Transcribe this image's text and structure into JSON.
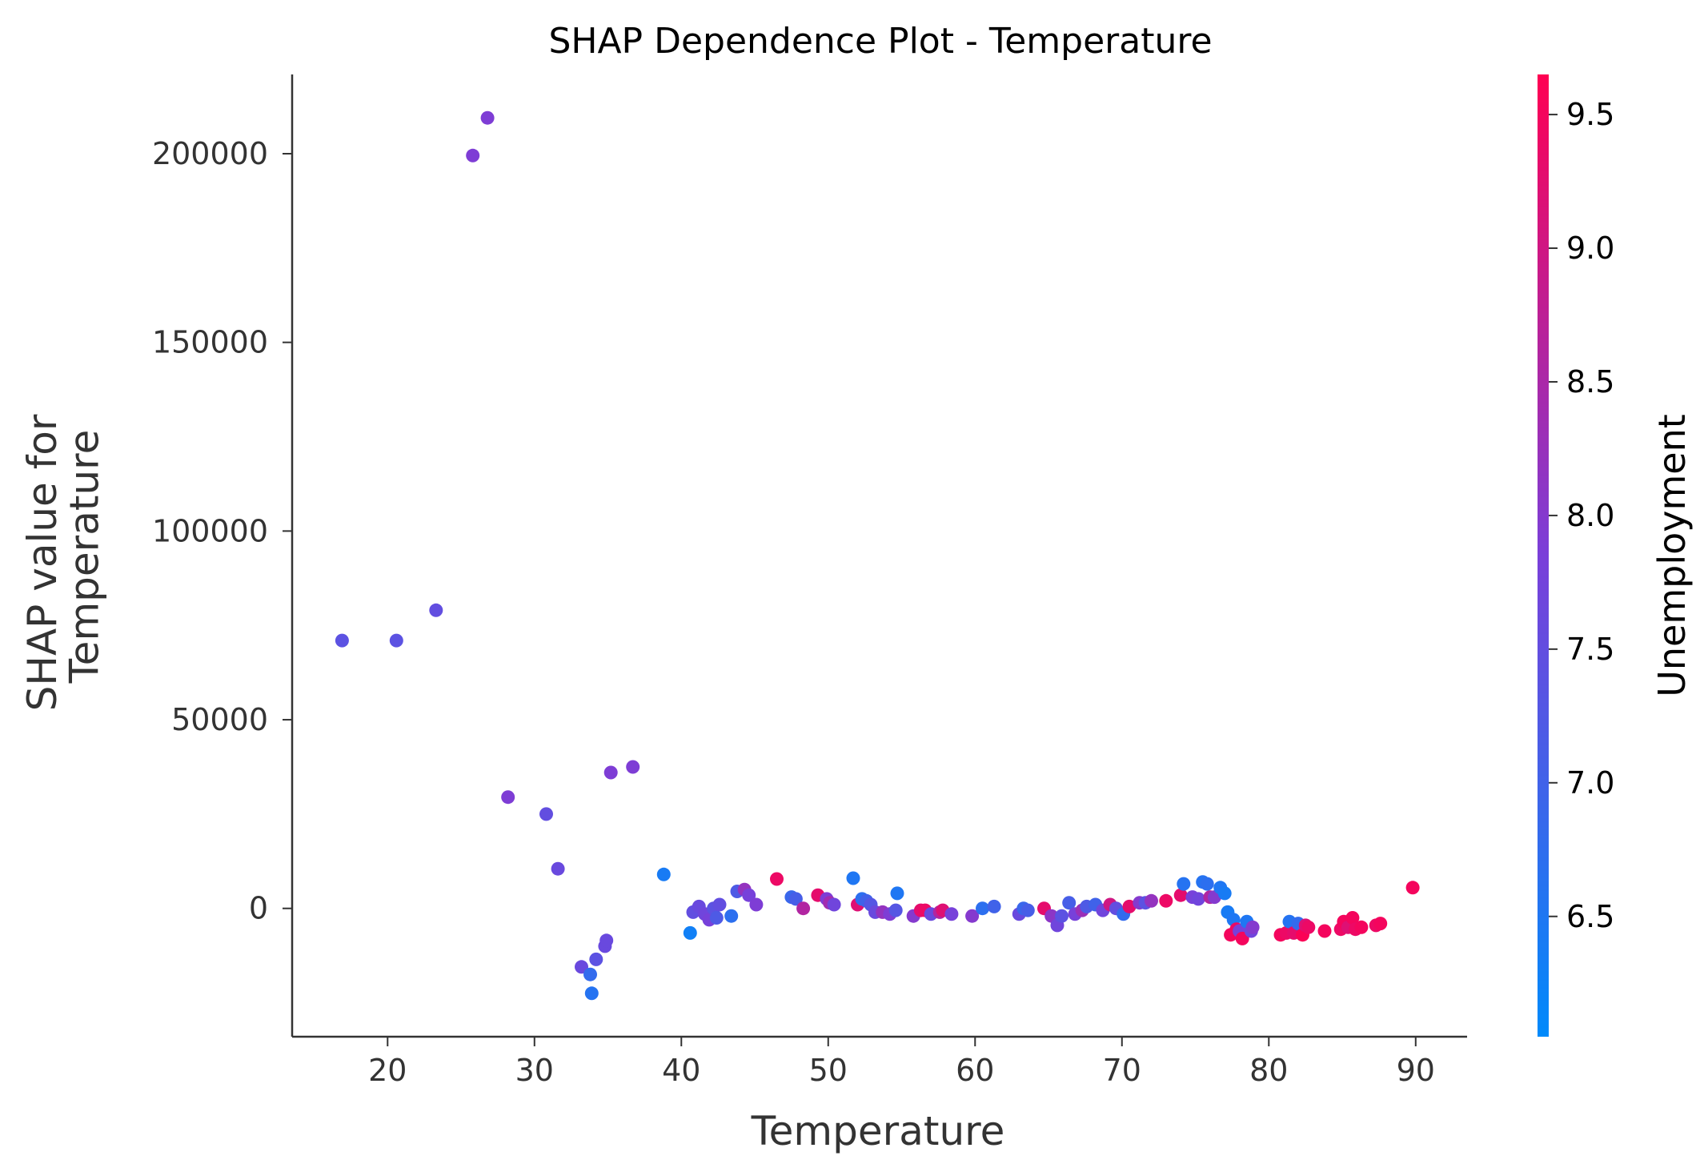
{
  "chart_data": {
    "type": "scatter",
    "title": "SHAP Dependence Plot - Temperature",
    "xlabel": "Temperature",
    "ylabel": "SHAP value for\nTemperature",
    "xlim": [
      13.5,
      93.5
    ],
    "ylim": [
      -34000,
      221000
    ],
    "xticks": [
      20,
      30,
      40,
      50,
      60,
      70,
      80,
      90
    ],
    "yticks": [
      0,
      50000,
      100000,
      150000,
      200000
    ],
    "grid": false,
    "colorbar": {
      "label": "Unemployment",
      "range": [
        6.05,
        9.65
      ],
      "ticks": [
        6.5,
        7.0,
        7.5,
        8.0,
        8.5,
        9.0,
        9.5
      ],
      "colors": [
        "#008afb",
        "#7a3fd9",
        "#ff0052"
      ]
    },
    "points": [
      {
        "x": 16.9,
        "y": 71000,
        "c": 7.4
      },
      {
        "x": 20.6,
        "y": 71000,
        "c": 7.4
      },
      {
        "x": 23.3,
        "y": 79000,
        "c": 7.5
      },
      {
        "x": 25.8,
        "y": 199500,
        "c": 7.9
      },
      {
        "x": 26.8,
        "y": 209500,
        "c": 7.9
      },
      {
        "x": 28.2,
        "y": 29500,
        "c": 7.9
      },
      {
        "x": 30.8,
        "y": 25000,
        "c": 7.5
      },
      {
        "x": 31.6,
        "y": 10500,
        "c": 7.6
      },
      {
        "x": 33.2,
        "y": -15500,
        "c": 7.6
      },
      {
        "x": 33.8,
        "y": -17500,
        "c": 6.8
      },
      {
        "x": 33.9,
        "y": -22500,
        "c": 6.6
      },
      {
        "x": 34.2,
        "y": -13500,
        "c": 7.4
      },
      {
        "x": 34.8,
        "y": -10000,
        "c": 7.6
      },
      {
        "x": 34.9,
        "y": -8500,
        "c": 7.6
      },
      {
        "x": 35.2,
        "y": 36000,
        "c": 7.9
      },
      {
        "x": 36.7,
        "y": 37500,
        "c": 7.9
      },
      {
        "x": 38.8,
        "y": 9000,
        "c": 6.4
      },
      {
        "x": 40.6,
        "y": -6500,
        "c": 6.3
      },
      {
        "x": 40.8,
        "y": -1000,
        "c": 7.5
      },
      {
        "x": 41.2,
        "y": 500,
        "c": 7.6
      },
      {
        "x": 41.6,
        "y": -1500,
        "c": 7.7
      },
      {
        "x": 41.9,
        "y": -3000,
        "c": 7.8
      },
      {
        "x": 42.2,
        "y": 0,
        "c": 7.4
      },
      {
        "x": 42.4,
        "y": -2500,
        "c": 7.2
      },
      {
        "x": 42.6,
        "y": 1000,
        "c": 7.5
      },
      {
        "x": 43.4,
        "y": -2000,
        "c": 6.7
      },
      {
        "x": 43.8,
        "y": 4500,
        "c": 7.2
      },
      {
        "x": 44.3,
        "y": 5000,
        "c": 8.2
      },
      {
        "x": 44.6,
        "y": 3500,
        "c": 7.8
      },
      {
        "x": 45.1,
        "y": 1000,
        "c": 7.9
      },
      {
        "x": 46.5,
        "y": 7800,
        "c": 9.4
      },
      {
        "x": 47.5,
        "y": 3000,
        "c": 6.9
      },
      {
        "x": 47.8,
        "y": 2500,
        "c": 7.1
      },
      {
        "x": 48.3,
        "y": 0,
        "c": 8.6
      },
      {
        "x": 49.3,
        "y": 3500,
        "c": 9.3
      },
      {
        "x": 49.9,
        "y": 2500,
        "c": 7.9
      },
      {
        "x": 50.1,
        "y": 1500,
        "c": 8.4
      },
      {
        "x": 50.4,
        "y": 1000,
        "c": 7.7
      },
      {
        "x": 51.7,
        "y": 8000,
        "c": 6.5
      },
      {
        "x": 52.0,
        "y": 1000,
        "c": 9.2
      },
      {
        "x": 52.3,
        "y": 2500,
        "c": 6.7
      },
      {
        "x": 52.6,
        "y": 2000,
        "c": 7.0
      },
      {
        "x": 52.9,
        "y": 1000,
        "c": 7.3
      },
      {
        "x": 53.2,
        "y": -1000,
        "c": 7.6
      },
      {
        "x": 53.7,
        "y": -1000,
        "c": 8.2
      },
      {
        "x": 54.2,
        "y": -1500,
        "c": 7.9
      },
      {
        "x": 54.6,
        "y": -500,
        "c": 7.3
      },
      {
        "x": 54.7,
        "y": 4000,
        "c": 6.5
      },
      {
        "x": 55.8,
        "y": -2000,
        "c": 8.0
      },
      {
        "x": 56.3,
        "y": -500,
        "c": 9.3
      },
      {
        "x": 56.6,
        "y": -500,
        "c": 9.4
      },
      {
        "x": 57.0,
        "y": -1500,
        "c": 7.6
      },
      {
        "x": 57.6,
        "y": -1000,
        "c": 8.6
      },
      {
        "x": 57.8,
        "y": -500,
        "c": 9.2
      },
      {
        "x": 58.4,
        "y": -1500,
        "c": 7.8
      },
      {
        "x": 59.8,
        "y": -2000,
        "c": 8.0
      },
      {
        "x": 60.5,
        "y": 0,
        "c": 6.7
      },
      {
        "x": 61.3,
        "y": 500,
        "c": 7.0
      },
      {
        "x": 63.0,
        "y": -1500,
        "c": 7.6
      },
      {
        "x": 63.3,
        "y": 0,
        "c": 6.9
      },
      {
        "x": 63.6,
        "y": -500,
        "c": 7.1
      },
      {
        "x": 64.7,
        "y": 0,
        "c": 9.3
      },
      {
        "x": 65.2,
        "y": -2000,
        "c": 8.1
      },
      {
        "x": 65.6,
        "y": -4500,
        "c": 7.7
      },
      {
        "x": 65.9,
        "y": -2000,
        "c": 7.4
      },
      {
        "x": 66.4,
        "y": 1500,
        "c": 7.1
      },
      {
        "x": 66.8,
        "y": -1500,
        "c": 7.8
      },
      {
        "x": 67.3,
        "y": -500,
        "c": 8.3
      },
      {
        "x": 67.6,
        "y": 500,
        "c": 7.2
      },
      {
        "x": 68.2,
        "y": 1000,
        "c": 7.0
      },
      {
        "x": 68.7,
        "y": -500,
        "c": 7.7
      },
      {
        "x": 69.2,
        "y": 1000,
        "c": 9.0
      },
      {
        "x": 69.6,
        "y": 0,
        "c": 7.5
      },
      {
        "x": 70.1,
        "y": -1500,
        "c": 6.8
      },
      {
        "x": 70.5,
        "y": 500,
        "c": 9.3
      },
      {
        "x": 71.2,
        "y": 1500,
        "c": 8.0
      },
      {
        "x": 71.6,
        "y": 1500,
        "c": 7.4
      },
      {
        "x": 72.0,
        "y": 2000,
        "c": 8.2
      },
      {
        "x": 73.0,
        "y": 2000,
        "c": 9.4
      },
      {
        "x": 74.0,
        "y": 3500,
        "c": 9.3
      },
      {
        "x": 74.2,
        "y": 6500,
        "c": 6.6
      },
      {
        "x": 74.8,
        "y": 3000,
        "c": 7.8
      },
      {
        "x": 75.2,
        "y": 2500,
        "c": 7.7
      },
      {
        "x": 75.5,
        "y": 7000,
        "c": 6.6
      },
      {
        "x": 75.8,
        "y": 6500,
        "c": 6.7
      },
      {
        "x": 76.0,
        "y": 3000,
        "c": 8.6
      },
      {
        "x": 76.3,
        "y": 3000,
        "c": 8.0
      },
      {
        "x": 76.7,
        "y": 5500,
        "c": 6.5
      },
      {
        "x": 77.0,
        "y": 4000,
        "c": 6.4
      },
      {
        "x": 77.2,
        "y": -1000,
        "c": 6.4
      },
      {
        "x": 77.4,
        "y": -7000,
        "c": 9.5
      },
      {
        "x": 77.6,
        "y": -3000,
        "c": 6.5
      },
      {
        "x": 77.8,
        "y": -5500,
        "c": 9.4
      },
      {
        "x": 78.0,
        "y": -6000,
        "c": 7.8
      },
      {
        "x": 78.2,
        "y": -8000,
        "c": 9.5
      },
      {
        "x": 78.5,
        "y": -3500,
        "c": 6.5
      },
      {
        "x": 78.8,
        "y": -6000,
        "c": 7.7
      },
      {
        "x": 78.9,
        "y": -5000,
        "c": 8.0
      },
      {
        "x": 80.8,
        "y": -7000,
        "c": 9.5
      },
      {
        "x": 81.2,
        "y": -6500,
        "c": 9.4
      },
      {
        "x": 81.4,
        "y": -3500,
        "c": 6.6
      },
      {
        "x": 81.7,
        "y": -6500,
        "c": 9.3
      },
      {
        "x": 82.0,
        "y": -4000,
        "c": 6.8
      },
      {
        "x": 82.3,
        "y": -7000,
        "c": 9.6
      },
      {
        "x": 82.5,
        "y": -4500,
        "c": 9.2
      },
      {
        "x": 82.7,
        "y": -5000,
        "c": 9.4
      },
      {
        "x": 83.8,
        "y": -6000,
        "c": 9.5
      },
      {
        "x": 84.9,
        "y": -5500,
        "c": 9.4
      },
      {
        "x": 85.1,
        "y": -3500,
        "c": 9.5
      },
      {
        "x": 85.4,
        "y": -5000,
        "c": 9.2
      },
      {
        "x": 85.7,
        "y": -2500,
        "c": 9.5
      },
      {
        "x": 85.9,
        "y": -5500,
        "c": 9.4
      },
      {
        "x": 86.3,
        "y": -5000,
        "c": 9.5
      },
      {
        "x": 87.3,
        "y": -4500,
        "c": 9.4
      },
      {
        "x": 87.6,
        "y": -4000,
        "c": 9.5
      },
      {
        "x": 89.8,
        "y": 5500,
        "c": 9.5
      }
    ]
  }
}
